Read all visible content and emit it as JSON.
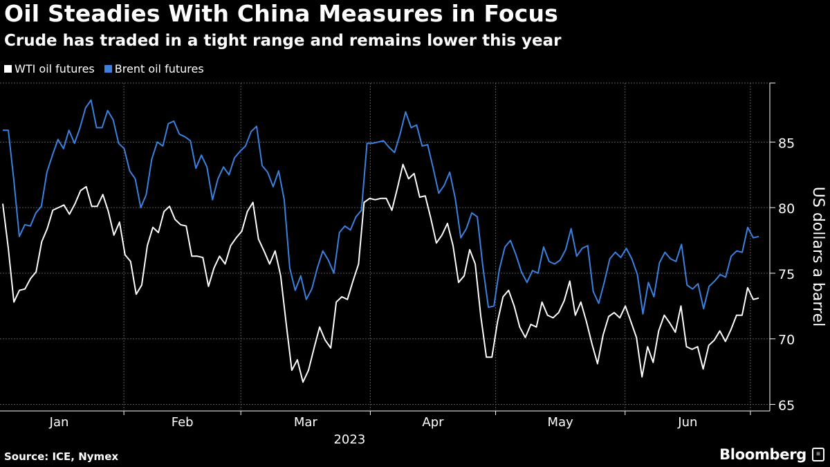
{
  "header": {
    "title": "Oil Steadies With China Measures in Focus",
    "subtitle": "Crude has traded in a tight range and remains lower this year"
  },
  "footer": {
    "source": "Source: ICE, Nymex",
    "brand": "Bloomberg",
    "brand_mark_icon": "bloomberg-terminal-icon"
  },
  "chart_data": {
    "type": "line",
    "ylabel": "US dollars a barrel",
    "xlabel": "2023",
    "ylim": [
      64.5,
      89.5
    ],
    "yticks": [
      65,
      70,
      75,
      80,
      85
    ],
    "grid": true,
    "legend_position": "top-left",
    "x_period": "2023-01-03 to 2023-07-03",
    "month_labels": [
      "Jan",
      "Feb",
      "Mar",
      "Apr",
      "May",
      "Jun"
    ],
    "series": [
      {
        "name": "WTI oil futures",
        "color": "#ffffff",
        "values": [
          80.3,
          76.9,
          72.8,
          73.7,
          73.8,
          74.6,
          75.1,
          77.4,
          78.4,
          79.8,
          80.0,
          80.2,
          79.5,
          80.3,
          81.3,
          81.6,
          80.1,
          80.1,
          81.0,
          79.7,
          77.9,
          78.9,
          76.4,
          75.9,
          73.4,
          74.1,
          77.1,
          78.5,
          78.1,
          79.7,
          80.1,
          79.1,
          78.7,
          78.6,
          76.3,
          76.3,
          76.2,
          74.0,
          75.4,
          76.3,
          75.7,
          77.1,
          77.7,
          78.2,
          79.7,
          80.4,
          77.6,
          76.7,
          75.7,
          76.7,
          74.8,
          71.1,
          67.6,
          68.4,
          66.7,
          67.6,
          69.3,
          70.9,
          69.9,
          69.3,
          72.8,
          73.2,
          73.0,
          74.4,
          75.7,
          80.4,
          80.7,
          80.6,
          80.7,
          80.7,
          79.8,
          81.5,
          83.3,
          82.2,
          82.6,
          80.8,
          80.9,
          79.2,
          77.3,
          77.9,
          78.8,
          77.1,
          74.3,
          74.8,
          76.8,
          75.7,
          71.7,
          68.6,
          68.6,
          71.3,
          73.2,
          73.7,
          72.5,
          70.9,
          70.1,
          71.1,
          70.9,
          72.8,
          71.8,
          71.6,
          72.0,
          72.9,
          74.4,
          71.8,
          72.8,
          71.3,
          69.6,
          68.1,
          70.3,
          71.7,
          72.0,
          71.6,
          72.5,
          71.3,
          70.1,
          67.1,
          69.4,
          68.2,
          70.6,
          71.8,
          71.2,
          70.5,
          72.5,
          69.4,
          69.2,
          69.4,
          67.7,
          69.5,
          69.9,
          70.6,
          69.8,
          70.7,
          71.8,
          71.8,
          73.9,
          73.0,
          73.1
        ]
      },
      {
        "name": "Brent oil futures",
        "color": "#3b82e0",
        "values": [
          85.9,
          85.9,
          82.1,
          77.8,
          78.7,
          78.6,
          79.6,
          80.1,
          82.7,
          84.0,
          85.2,
          84.5,
          85.9,
          84.9,
          86.1,
          87.6,
          88.2,
          86.1,
          86.1,
          87.4,
          86.7,
          84.9,
          84.5,
          82.8,
          82.2,
          80.0,
          81.0,
          83.7,
          85.0,
          84.7,
          86.4,
          86.6,
          85.6,
          85.4,
          85.1,
          83.0,
          84.0,
          83.1,
          80.6,
          82.2,
          83.1,
          82.5,
          83.8,
          84.3,
          84.7,
          85.8,
          86.2,
          83.2,
          82.7,
          81.6,
          82.8,
          80.6,
          75.4,
          73.7,
          74.8,
          73.0,
          73.8,
          75.4,
          76.7,
          76.0,
          75.0,
          78.1,
          78.6,
          78.3,
          79.3,
          79.8,
          84.9,
          84.9,
          85.0,
          85.1,
          84.6,
          84.2,
          85.6,
          87.3,
          86.1,
          86.3,
          84.7,
          84.8,
          83.0,
          81.1,
          81.7,
          82.7,
          80.7,
          77.7,
          78.4,
          79.6,
          79.3,
          75.5,
          72.4,
          72.5,
          75.3,
          77.0,
          77.5,
          76.4,
          75.1,
          74.3,
          75.2,
          75.0,
          77.0,
          75.9,
          75.7,
          76.0,
          76.8,
          78.4,
          76.3,
          76.9,
          77.1,
          73.6,
          72.7,
          74.3,
          76.1,
          76.6,
          76.2,
          76.9,
          76.1,
          74.9,
          71.9,
          74.3,
          73.2,
          75.8,
          76.6,
          76.1,
          75.9,
          77.2,
          74.1,
          73.8,
          74.2,
          72.3,
          74.0,
          74.4,
          74.9,
          74.7,
          76.3,
          76.7,
          76.6,
          78.5,
          77.7,
          77.8
        ]
      }
    ]
  }
}
